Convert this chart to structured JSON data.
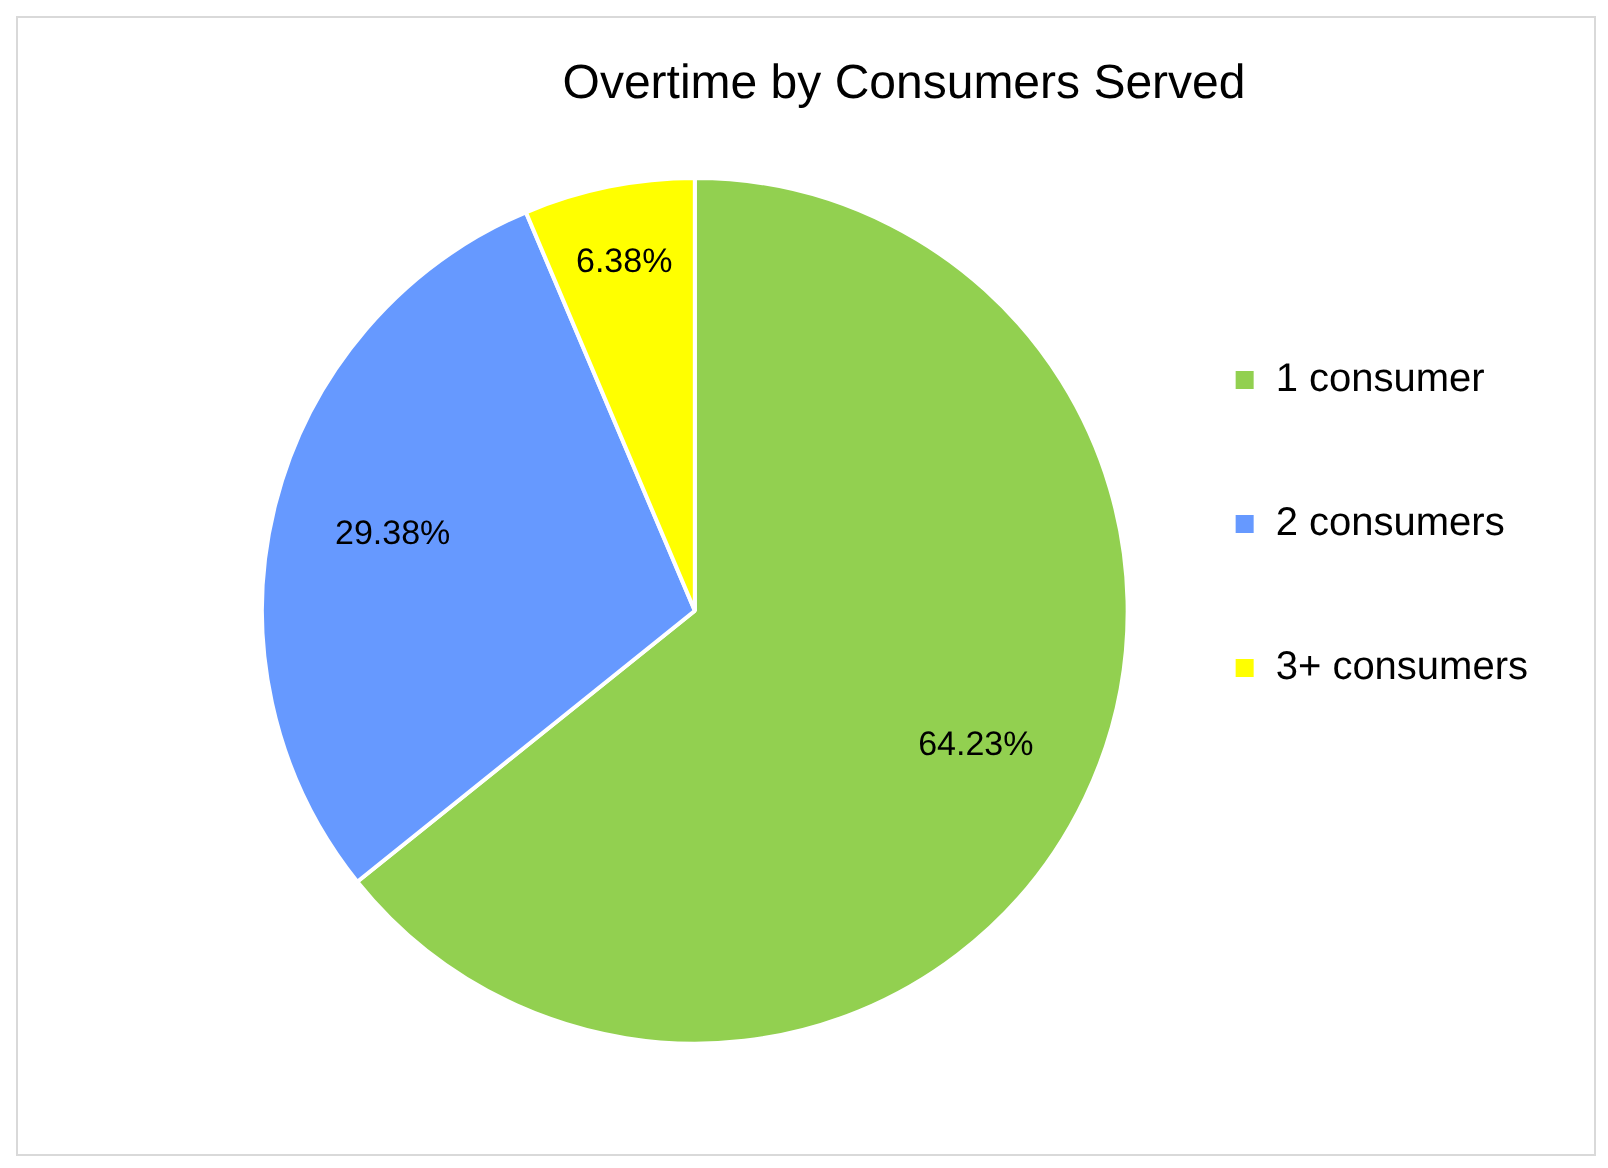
{
  "chart_data": {
    "type": "pie",
    "title": "Overtime by Consumers Served",
    "categories": [
      "1 consumer",
      "2 consumers",
      "3+ consumers"
    ],
    "values": [
      64.23,
      29.38,
      6.38
    ],
    "value_labels": [
      "64.23%",
      "29.38%",
      "6.38%"
    ],
    "colors": [
      "#92d050",
      "#6699ff",
      "#ffff00"
    ],
    "legend": "right"
  }
}
